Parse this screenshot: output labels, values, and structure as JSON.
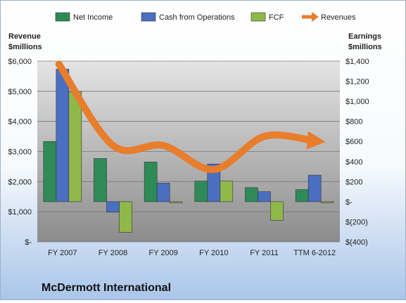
{
  "chart_data": {
    "type": "bar",
    "title": "McDermott International",
    "categories": [
      "FY 2007",
      "FY 2008",
      "FY 2009",
      "FY 2010",
      "FY 2011",
      "TTM 6-2012"
    ],
    "left_axis": {
      "label_line1": "Revenue",
      "label_line2": "$millions",
      "ylim": [
        0,
        6000
      ],
      "ticks": [
        0,
        1000,
        2000,
        3000,
        4000,
        5000,
        6000
      ],
      "tick_labels": [
        "$-",
        "$1,000",
        "$2,000",
        "$3,000",
        "$4,000",
        "$5,000",
        "$6,000"
      ]
    },
    "right_axis": {
      "label_line1": "Earnings",
      "label_line2": "$millions",
      "ylim": [
        -400,
        1400
      ],
      "ticks": [
        -400,
        -200,
        0,
        200,
        400,
        600,
        800,
        1000,
        1200,
        1400
      ],
      "tick_labels": [
        "$(400)",
        "$(200)",
        "$-",
        "$200",
        "$400",
        "$600",
        "$800",
        "$1,000",
        "$1,200",
        "$1,400"
      ]
    },
    "series": [
      {
        "name": "Net Income",
        "kind": "bar",
        "axis": "right",
        "color": "#2e8b57",
        "values": [
          600,
          430,
          395,
          205,
          140,
          120
        ]
      },
      {
        "name": "Cash from Operations",
        "kind": "bar",
        "axis": "right",
        "color": "#4a6fc0",
        "values": [
          1320,
          -105,
          185,
          375,
          100,
          265
        ]
      },
      {
        "name": "FCF",
        "kind": "bar",
        "axis": "right",
        "color": "#8fb84a",
        "values": [
          1095,
          -305,
          -8,
          205,
          -185,
          -8
        ]
      },
      {
        "name": "Revenues",
        "kind": "line",
        "axis": "left",
        "color": "#e87d2c",
        "values": [
          5900,
          3200,
          3200,
          2400,
          3500,
          3350
        ]
      }
    ],
    "legend_position": "top",
    "grid": true
  }
}
